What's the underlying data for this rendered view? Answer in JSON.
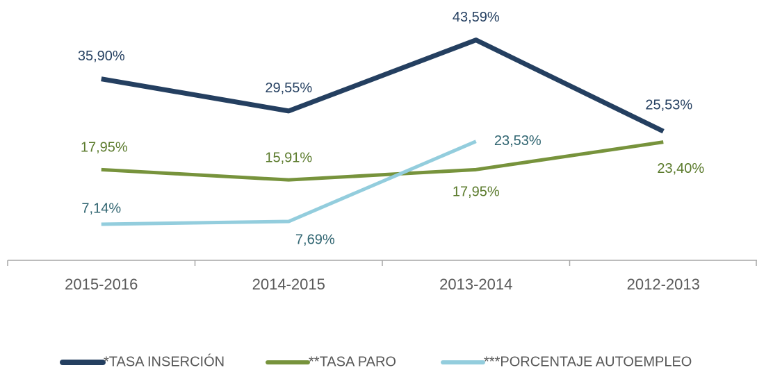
{
  "chart_data": {
    "type": "line",
    "categories": [
      "2015-2016",
      "2014-2015",
      "2013-2014",
      "2012-2013"
    ],
    "series": [
      {
        "name": "*TASA INSERCIÓN",
        "color": "#243f60",
        "values": [
          35.9,
          29.55,
          43.59,
          25.53
        ],
        "value_labels": [
          "35,90%",
          "29,55%",
          "43,59%",
          "25,53%"
        ]
      },
      {
        "name": "**TASA PARO",
        "color": "#77933c",
        "values": [
          17.95,
          15.91,
          17.95,
          23.4
        ],
        "value_labels": [
          "17,95%",
          "15,91%",
          "17,95%",
          "23,40%"
        ]
      },
      {
        "name": "***PORCENTAJE AUTOEMPLEO",
        "color": "#93cddd",
        "values": [
          7.14,
          7.69,
          23.53,
          null
        ],
        "value_labels": [
          "7,14%",
          "7,69%",
          "23,53%",
          null
        ]
      }
    ],
    "ylim": [
      0,
      50
    ],
    "legend": "bottom"
  }
}
